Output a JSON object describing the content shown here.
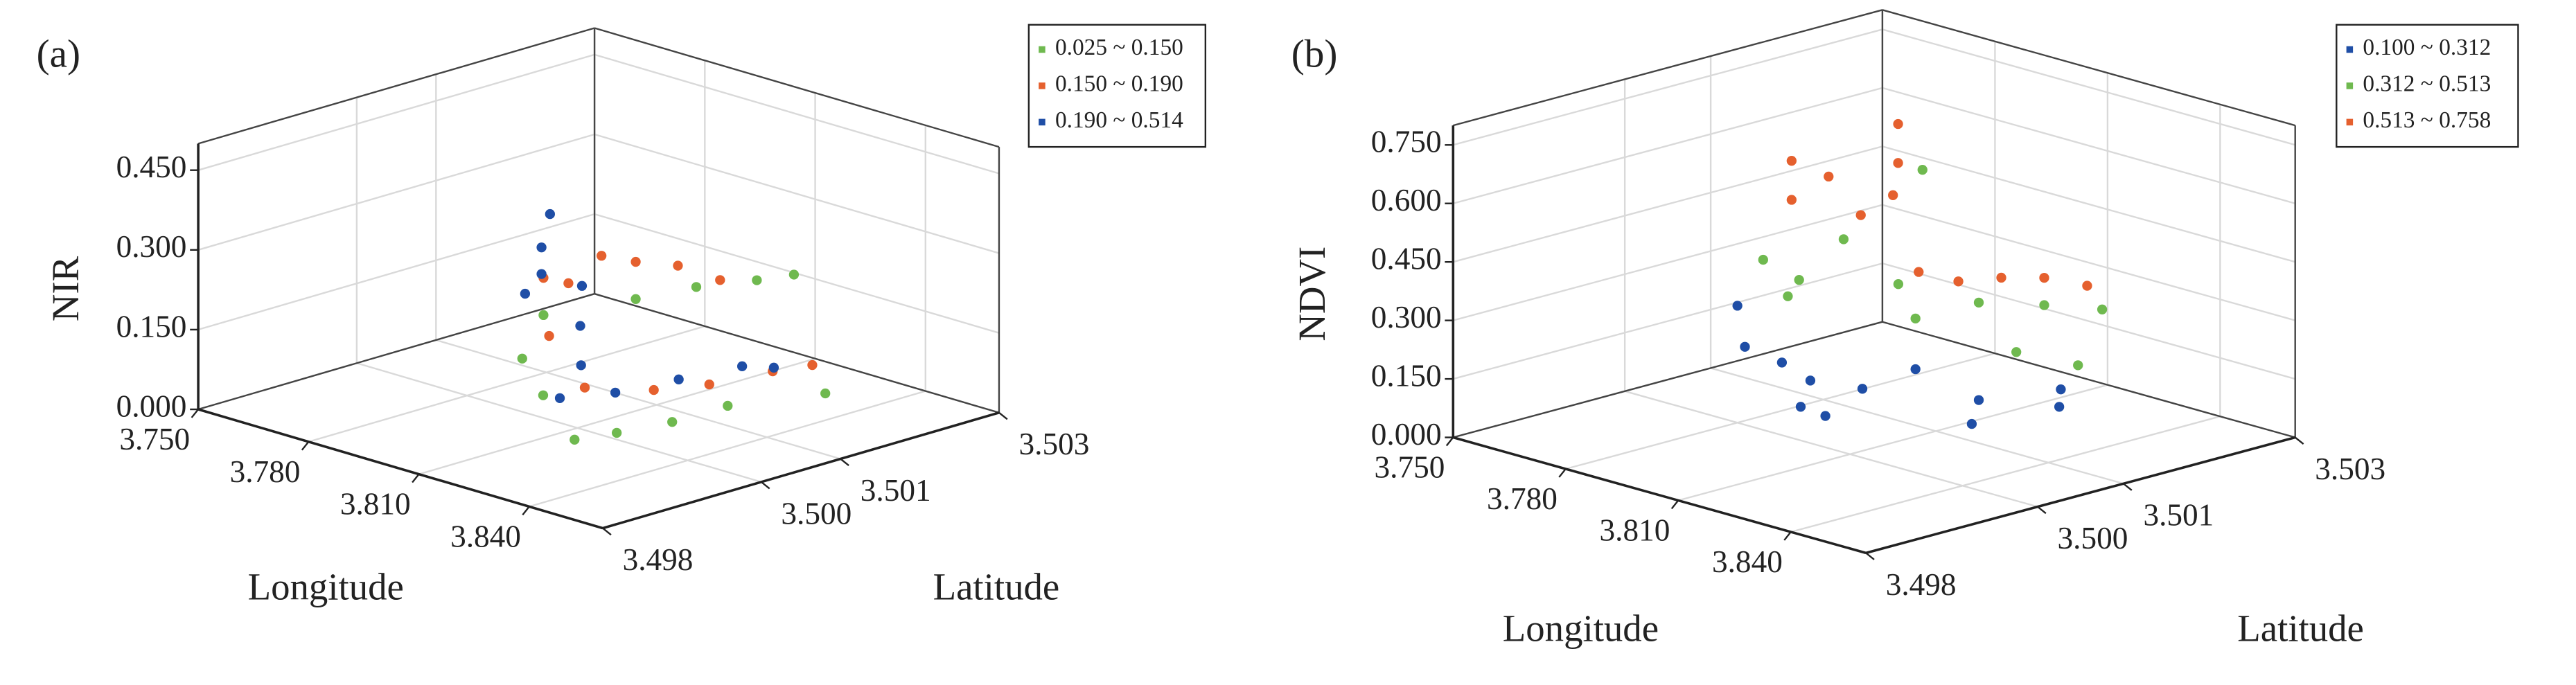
{
  "chart_data": [
    {
      "type": "scatter3d",
      "panel_label": "(a)",
      "xlabel": "Longitude",
      "ylabel": "Latitude",
      "zlabel": "NIR",
      "xlim": [
        3.75,
        3.86
      ],
      "ylim": [
        3.498,
        3.503
      ],
      "zlim": [
        0,
        0.5
      ],
      "xticks": [
        {
          "value": 3.75,
          "label": "3.750"
        },
        {
          "value": 3.78,
          "label": "3.780"
        },
        {
          "value": 3.81,
          "label": "3.810"
        },
        {
          "value": 3.84,
          "label": "3.840"
        }
      ],
      "yticks": [
        3.498,
        {
          "value": 3.5,
          "label": "3.500"
        },
        3.501,
        3.503
      ],
      "zticks": [
        {
          "value": 0,
          "label": "0.000"
        },
        {
          "value": 0.15,
          "label": "0.150"
        },
        {
          "value": 0.3,
          "label": "0.300"
        },
        {
          "value": 0.45,
          "label": "0.450"
        }
      ],
      "grid": true,
      "legend": "upper right",
      "series": [
        {
          "name": "0.025 ~ 0.150",
          "color": "#6fb94f",
          "x": [
            3.79,
            3.8,
            3.81,
            3.82,
            3.825,
            3.825,
            3.825,
            3.83,
            3.805,
            3.795,
            3.815,
            3.82
          ],
          "y": [
            3.5005,
            3.5012,
            3.5015,
            3.5018,
            3.4998,
            3.5005,
            3.5012,
            3.5022,
            3.4998,
            3.5,
            3.5025,
            3.4995
          ],
          "z": [
            0.15,
            0.17,
            0.2,
            0.22,
            0.03,
            0.02,
            0.02,
            0.01,
            0.06,
            0.1,
            0.19,
            0.02
          ]
        },
        {
          "name": "0.150 ~ 0.190",
          "color": "#e5602e",
          "x": [
            3.79,
            3.795,
            3.8,
            3.805,
            3.812,
            3.82,
            3.82,
            3.82,
            3.82,
            3.798,
            3.786,
            3.81
          ],
          "y": [
            3.5005,
            3.501,
            3.5012,
            3.5015,
            3.5,
            3.5005,
            3.5012,
            3.502,
            3.5025,
            3.5002,
            3.501,
            3.5018
          ],
          "z": [
            0.22,
            0.25,
            0.24,
            0.23,
            0.08,
            0.07,
            0.05,
            0.04,
            0.03,
            0.14,
            0.18,
            0.2
          ]
        },
        {
          "name": "0.190 ~ 0.514",
          "color": "#1f4ea6",
          "x": [
            3.783,
            3.783,
            3.781,
            3.785,
            3.816,
            3.816,
            3.816,
            3.816,
            3.816,
            3.811,
            3.8,
            3.794
          ],
          "y": [
            3.5008,
            3.5008,
            3.501,
            3.5005,
            3.4995,
            3.5002,
            3.501,
            3.5018,
            3.5022,
            3.5,
            3.5005,
            3.5008
          ],
          "z": [
            0.25,
            0.2,
            0.3,
            0.18,
            0.09,
            0.07,
            0.06,
            0.05,
            0.03,
            0.12,
            0.15,
            0.2
          ]
        }
      ]
    },
    {
      "type": "scatter3d",
      "panel_label": "(b)",
      "xlabel": "Longitude",
      "ylabel": "Latitude",
      "zlabel": "NDVI",
      "xlim": [
        3.75,
        3.86
      ],
      "ylim": [
        3.498,
        3.503
      ],
      "zlim": [
        0,
        0.8
      ],
      "xticks": [
        {
          "value": 3.75,
          "label": "3.750"
        },
        {
          "value": 3.78,
          "label": "3.780"
        },
        {
          "value": 3.81,
          "label": "3.810"
        },
        {
          "value": 3.84,
          "label": "3.840"
        }
      ],
      "yticks": [
        3.498,
        {
          "value": 3.5,
          "label": "3.500"
        },
        3.501,
        3.503
      ],
      "zticks": [
        {
          "value": 0,
          "label": "0.000"
        },
        {
          "value": 0.15,
          "label": "0.150"
        },
        {
          "value": 0.3,
          "label": "0.300"
        },
        {
          "value": 0.45,
          "label": "0.450"
        },
        {
          "value": 0.6,
          "label": "0.600"
        },
        {
          "value": 0.75,
          "label": "0.750"
        }
      ],
      "grid": true,
      "legend": "upper right",
      "series": [
        {
          "name": "0.100 ~ 0.312",
          "color": "#1f4ea6",
          "x": [
            3.78,
            3.782,
            3.785,
            3.788,
            3.79,
            3.792,
            3.795,
            3.8,
            3.81,
            3.815,
            3.82,
            3.825
          ],
          "y": [
            3.5,
            3.5,
            3.5003,
            3.5005,
            3.5003,
            3.5005,
            3.5008,
            3.5012,
            3.5015,
            3.5012,
            3.502,
            3.5018
          ],
          "z": [
            0.3,
            0.2,
            0.15,
            0.1,
            0.05,
            0.02,
            0.08,
            0.12,
            0.05,
            0.02,
            0.03,
            0.1
          ]
        },
        {
          "name": "0.312 ~ 0.513",
          "color": "#6fb94f",
          "x": [
            3.78,
            3.782,
            3.785,
            3.79,
            3.8,
            3.81,
            3.816,
            3.82,
            3.825,
            3.82,
            3.8,
            3.795
          ],
          "y": [
            3.5003,
            3.5005,
            3.5005,
            3.5008,
            3.501,
            3.5015,
            3.502,
            3.5025,
            3.502,
            3.5015,
            3.5012,
            3.5015
          ],
          "z": [
            0.4,
            0.3,
            0.35,
            0.45,
            0.35,
            0.3,
            0.28,
            0.25,
            0.15,
            0.2,
            0.25,
            0.6
          ]
        },
        {
          "name": "0.513 ~ 0.758",
          "color": "#e5602e",
          "x": [
            3.783,
            3.783,
            3.786,
            3.7885,
            3.7885,
            3.794,
            3.816,
            3.816,
            3.816,
            3.816,
            3.81,
            3.79
          ],
          "y": [
            3.5005,
            3.5005,
            3.5008,
            3.5015,
            3.5015,
            3.5012,
            3.501,
            3.5015,
            3.502,
            3.5025,
            3.5008,
            3.501
          ],
          "z": [
            0.65,
            0.55,
            0.6,
            0.7,
            0.6,
            0.55,
            0.4,
            0.38,
            0.35,
            0.3,
            0.42,
            0.5
          ]
        }
      ]
    }
  ]
}
